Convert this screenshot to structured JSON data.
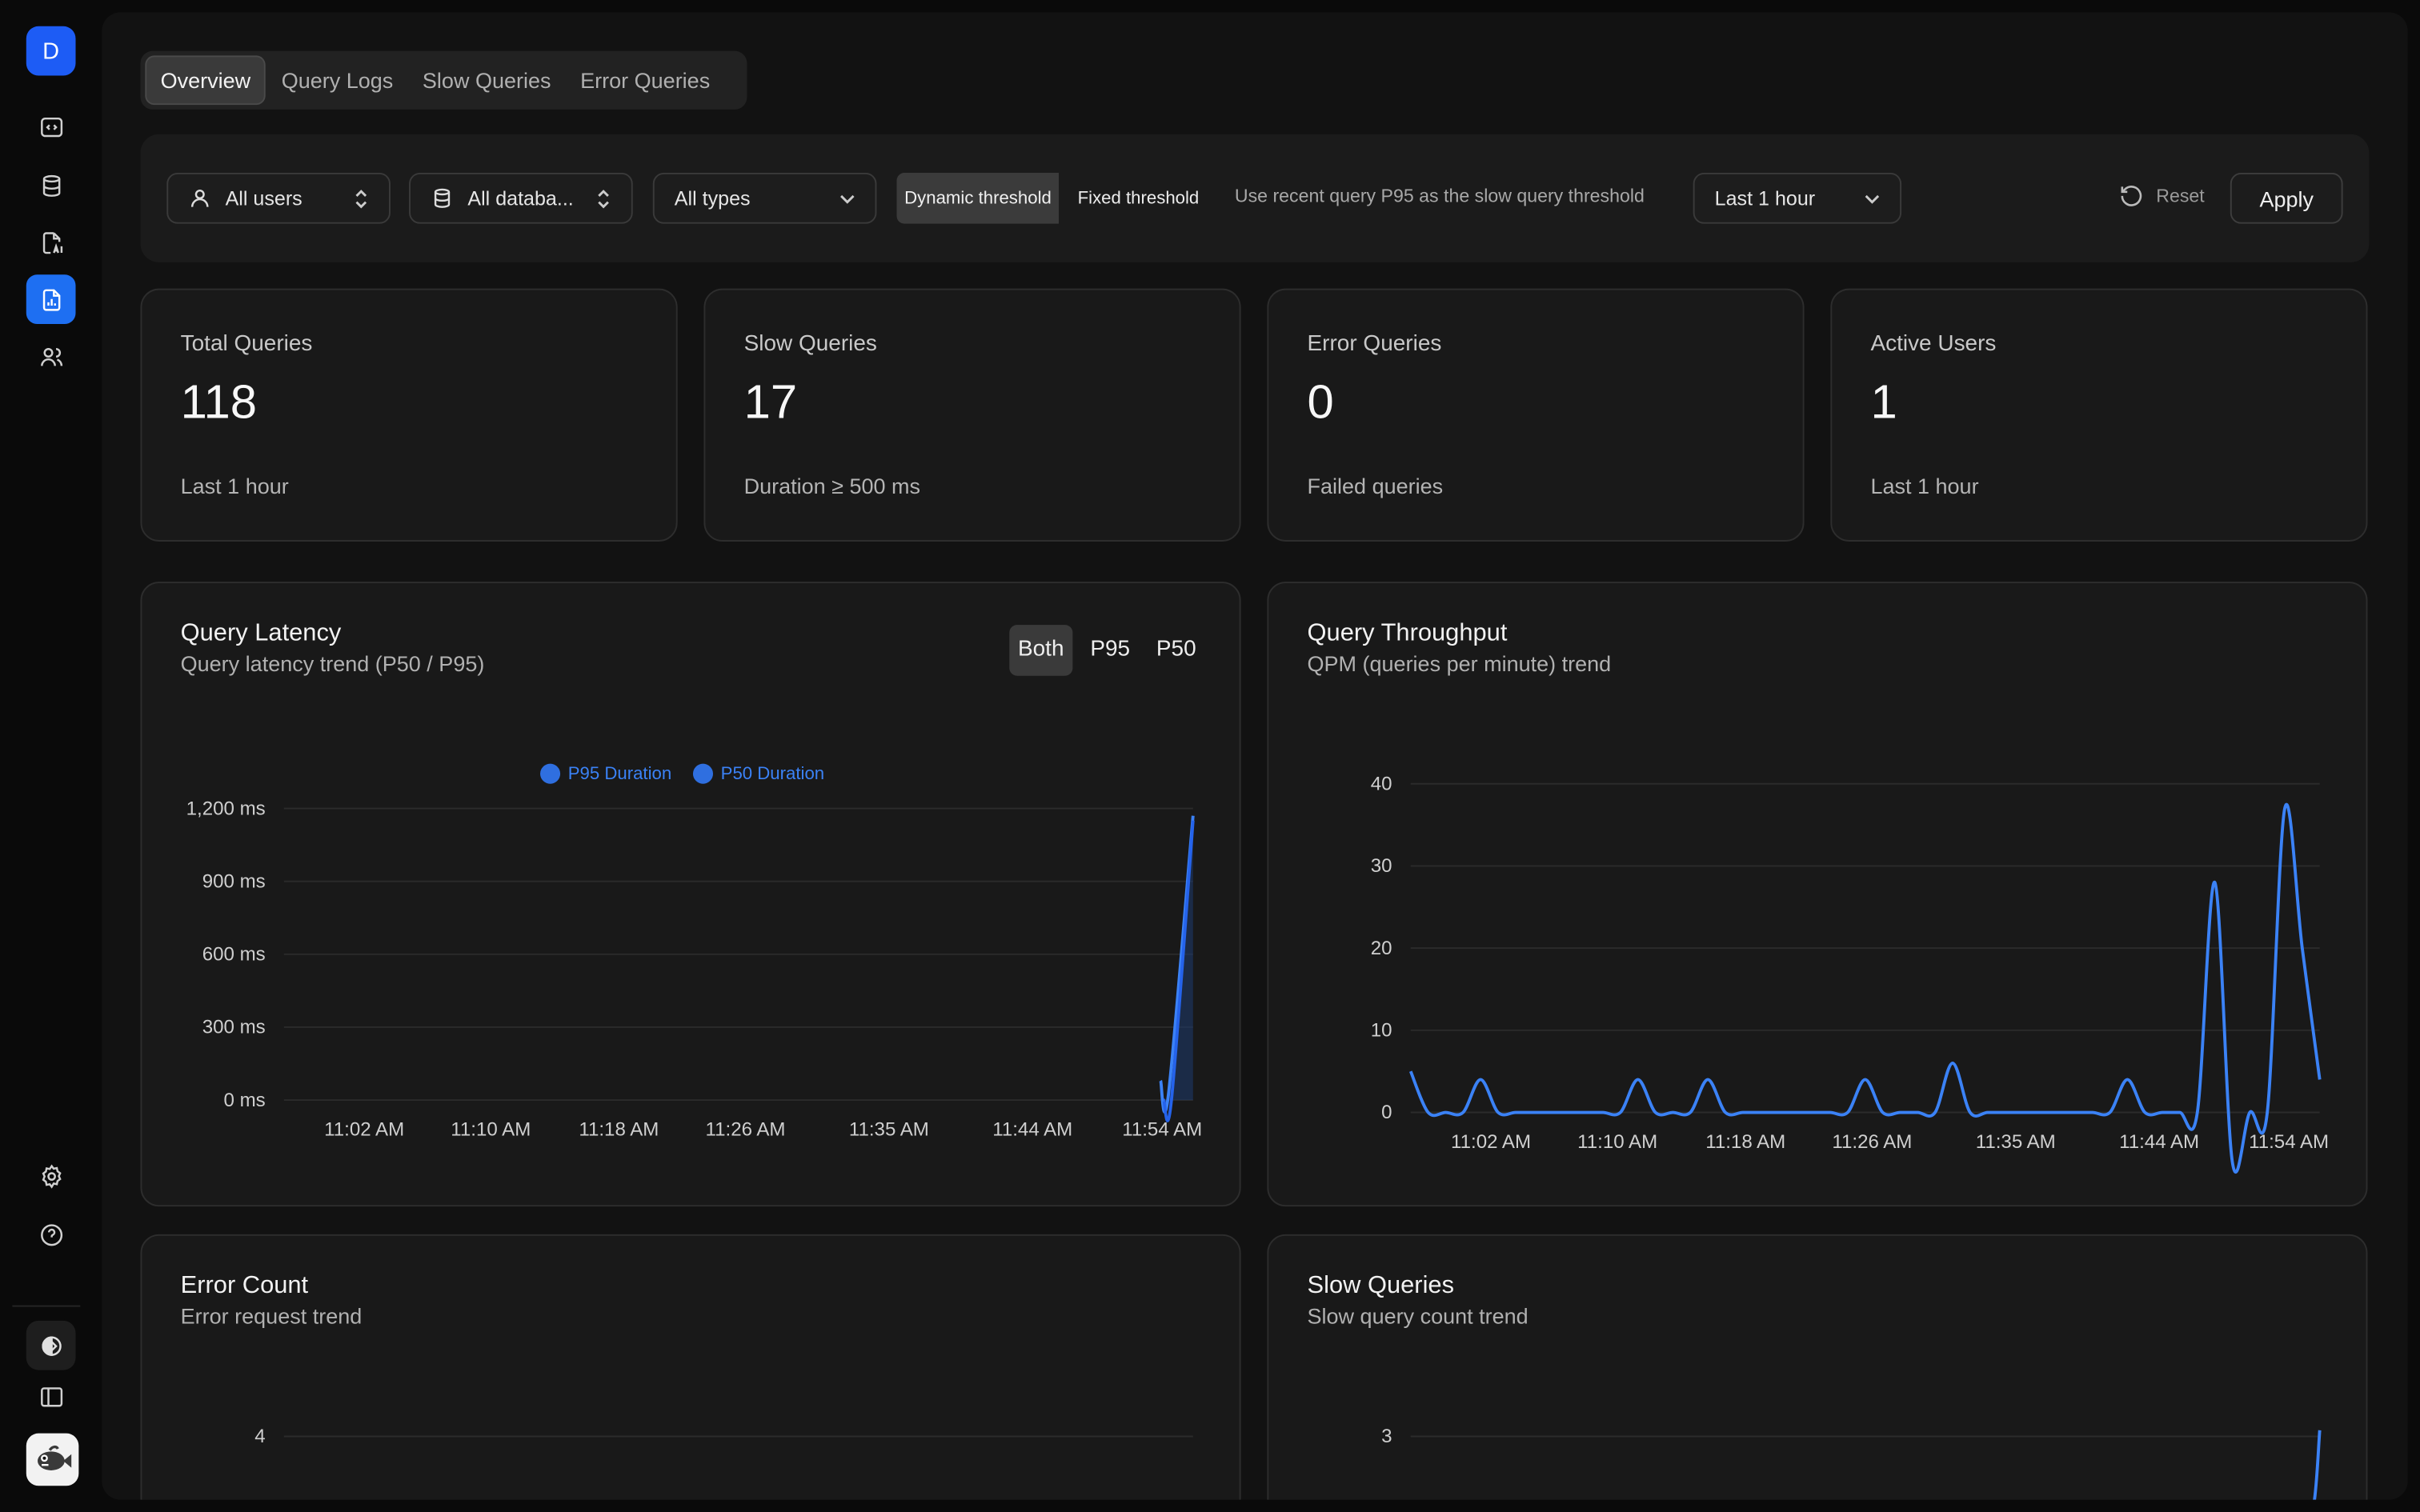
{
  "sidebar": {
    "logo_letter": "D",
    "items": [
      {
        "icon": "code-window-icon"
      },
      {
        "icon": "database-icon"
      },
      {
        "icon": "ai-document-icon"
      },
      {
        "icon": "report-chart-icon",
        "active": true
      },
      {
        "icon": "users-icon"
      }
    ],
    "bottom": [
      "gear-icon",
      "help-icon",
      "theme-icon",
      "panel-icon"
    ],
    "avatar": "fish-avatar"
  },
  "tabs": [
    "Overview",
    "Query Logs",
    "Slow Queries",
    "Error Queries"
  ],
  "filters": {
    "users": "All users",
    "databases": "All databa...",
    "types": "All types",
    "threshold_dynamic": "Dynamic threshold",
    "threshold_fixed": "Fixed threshold",
    "hint": "Use recent query P95 as the slow query threshold",
    "range": "Last 1 hour",
    "reset": "Reset",
    "apply": "Apply"
  },
  "stats": [
    {
      "label": "Total Queries",
      "value": "118",
      "sub": "Last 1 hour"
    },
    {
      "label": "Slow Queries",
      "value": "17",
      "sub": "Duration ≥ 500 ms"
    },
    {
      "label": "Error Queries",
      "value": "0",
      "sub": "Failed queries"
    },
    {
      "label": "Active Users",
      "value": "1",
      "sub": "Last 1 hour"
    }
  ],
  "cards": {
    "latency": {
      "title": "Query Latency",
      "subtitle": "Query latency trend (P50 / P95)",
      "toggle": [
        "Both",
        "P95",
        "P50"
      ],
      "legend": [
        "P95 Duration",
        "P50 Duration"
      ]
    },
    "throughput": {
      "title": "Query Throughput",
      "subtitle": "QPM (queries per minute) trend"
    },
    "errors": {
      "title": "Error Count",
      "subtitle": "Error request trend"
    },
    "slow": {
      "title": "Slow Queries",
      "subtitle": "Slow query count trend"
    }
  },
  "chart_data": [
    {
      "type": "line",
      "title": "Query Latency",
      "x_ticks": [
        "11:02 AM",
        "11:10 AM",
        "11:18 AM",
        "11:26 AM",
        "11:35 AM",
        "11:44 AM",
        "11:54 AM"
      ],
      "y_ticks": [
        "0 ms",
        "300 ms",
        "600 ms",
        "900 ms",
        "1,200 ms"
      ],
      "ylim": [
        0,
        1200
      ],
      "series": [
        {
          "name": "P95 Duration",
          "color": "#3b82f6",
          "x": [
            "11:53 AM",
            "11:54 AM",
            "11:55 AM"
          ],
          "values": [
            80,
            20,
            1170
          ]
        },
        {
          "name": "P50 Duration",
          "color": "#2563eb",
          "x": [
            "11:53 AM",
            "11:54 AM",
            "11:55 AM"
          ],
          "values": [
            0,
            0,
            1150
          ]
        }
      ]
    },
    {
      "type": "line",
      "title": "Query Throughput",
      "x_ticks": [
        "11:02 AM",
        "11:10 AM",
        "11:18 AM",
        "11:26 AM",
        "11:35 AM",
        "11:44 AM",
        "11:54 AM"
      ],
      "y_ticks": [
        "0",
        "10",
        "20",
        "30",
        "40"
      ],
      "ylim": [
        0,
        40
      ],
      "series": [
        {
          "name": "QPM",
          "color": "#3b82f6",
          "values": [
            5,
            0,
            0,
            0,
            4,
            0,
            0,
            0,
            0,
            0,
            0,
            0,
            0,
            4,
            0,
            0,
            0,
            4,
            0,
            0,
            0,
            0,
            0,
            0,
            0,
            0,
            4,
            0,
            0,
            0,
            0,
            6,
            0,
            0,
            0,
            0,
            0,
            0,
            0,
            0,
            0,
            4,
            0,
            0,
            0,
            0,
            28,
            -6,
            0,
            0,
            37,
            20,
            4
          ]
        }
      ]
    },
    {
      "type": "line",
      "title": "Error Count",
      "y_ticks": [
        "4"
      ],
      "series": []
    },
    {
      "type": "line",
      "title": "Slow Queries",
      "y_ticks": [
        "3"
      ],
      "series": [
        {
          "name": "Slow",
          "color": "#3b82f6",
          "values": [
            0,
            3
          ]
        }
      ]
    }
  ]
}
